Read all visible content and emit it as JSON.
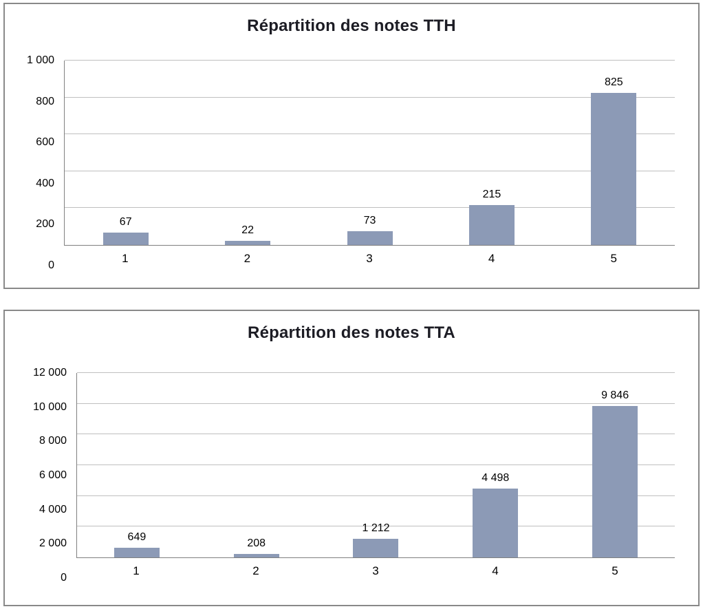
{
  "chart_data": [
    {
      "type": "bar",
      "title": "Répartition des notes TTH",
      "categories": [
        "1",
        "2",
        "3",
        "4",
        "5"
      ],
      "values": [
        67,
        22,
        73,
        215,
        825
      ],
      "value_labels": [
        "67",
        "22",
        "73",
        "215",
        "825"
      ],
      "xlabel": "",
      "ylabel": "",
      "ylim": [
        0,
        1000
      ],
      "yticks": [
        {
          "value": 0,
          "label": "0"
        },
        {
          "value": 200,
          "label": "200"
        },
        {
          "value": 400,
          "label": "400"
        },
        {
          "value": 600,
          "label": "600"
        },
        {
          "value": 800,
          "label": "800"
        },
        {
          "value": 1000,
          "label": "1 000"
        }
      ],
      "grid": true,
      "legend": "none",
      "bar_color": "#8C9AB6",
      "gridline_color": "#BFBFBF"
    },
    {
      "type": "bar",
      "title": "Répartition des notes TTA",
      "categories": [
        "1",
        "2",
        "3",
        "4",
        "5"
      ],
      "values": [
        649,
        208,
        1212,
        4498,
        9846
      ],
      "value_labels": [
        "649",
        "208",
        "1 212",
        "4 498",
        "9 846"
      ],
      "xlabel": "",
      "ylabel": "",
      "ylim": [
        0,
        12000
      ],
      "yticks": [
        {
          "value": 0,
          "label": "0"
        },
        {
          "value": 2000,
          "label": "2 000"
        },
        {
          "value": 4000,
          "label": "4 000"
        },
        {
          "value": 6000,
          "label": "6 000"
        },
        {
          "value": 8000,
          "label": "8 000"
        },
        {
          "value": 10000,
          "label": "10 000"
        },
        {
          "value": 12000,
          "label": "12 000"
        }
      ],
      "grid": true,
      "legend": "none",
      "bar_color": "#8C9AB6",
      "gridline_color": "#BFBFBF"
    }
  ]
}
